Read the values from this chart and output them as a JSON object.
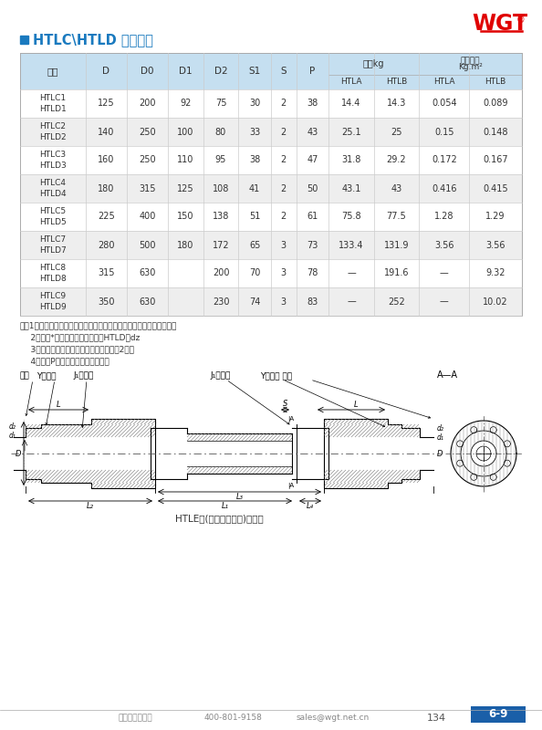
{
  "title": "HTLC\\HTLD 型联轴器",
  "rows": [
    [
      "HTLC1\nHTLD1",
      "125",
      "200",
      "92",
      "75",
      "30",
      "2",
      "38",
      "14.4",
      "14.3",
      "0.054",
      "0.089"
    ],
    [
      "HTLC2\nHTLD2",
      "140",
      "250",
      "100",
      "80",
      "33",
      "2",
      "43",
      "25.1",
      "25",
      "0.15",
      "0.148"
    ],
    [
      "HTLC3\nHTLD3",
      "160",
      "250",
      "110",
      "95",
      "38",
      "2",
      "47",
      "31.8",
      "29.2",
      "0.172",
      "0.167"
    ],
    [
      "HTLC4\nHTLD4",
      "180",
      "315",
      "125",
      "108",
      "41",
      "2",
      "50",
      "43.1",
      "43",
      "0.416",
      "0.415"
    ],
    [
      "HTLC5\nHTLD5",
      "225",
      "400",
      "150",
      "138",
      "51",
      "2",
      "61",
      "75.8",
      "77.5",
      "1.28",
      "1.29"
    ],
    [
      "HTLC7\nHTLD7",
      "280",
      "500",
      "180",
      "172",
      "65",
      "3",
      "73",
      "133.4",
      "131.9",
      "3.56",
      "3.56"
    ],
    [
      "HTLC8\nHTLD8",
      "315",
      "630",
      "",
      "200",
      "70",
      "3",
      "78",
      "—",
      "191.6",
      "—",
      "9.32"
    ],
    [
      "HTLC9\nHTLD9",
      "350",
      "630",
      "",
      "230",
      "74",
      "3",
      "83",
      "—",
      "252",
      "—",
      "10.02"
    ]
  ],
  "notes": [
    "注：1、联轴器的质量及转动量是按铸铁件最小轴孔尺寸计算的近似値。",
    "    2、标记*号的轴孔直径不适用于HTLD型dz",
    "    3、瞬时过载转矩不得大于公称转矩値的2倍。",
    "    4、尺寸P为拆卸抜爪的最小尺寸。"
  ],
  "footer_left": "中国威高减速机",
  "footer_phone": "400-801-9158",
  "footer_email": "sales@wgt.net.cn",
  "footer_page": "134",
  "footer_section": "6-9",
  "wgt_color": "#e00000",
  "title_color": "#1a7abf",
  "header_bg": "#c5dff0",
  "alt_row_bg": "#eeeeee",
  "white_row_bg": "#ffffff",
  "section_color": "#1a5fa8",
  "line_color": "#888888",
  "text_color": "#333333"
}
